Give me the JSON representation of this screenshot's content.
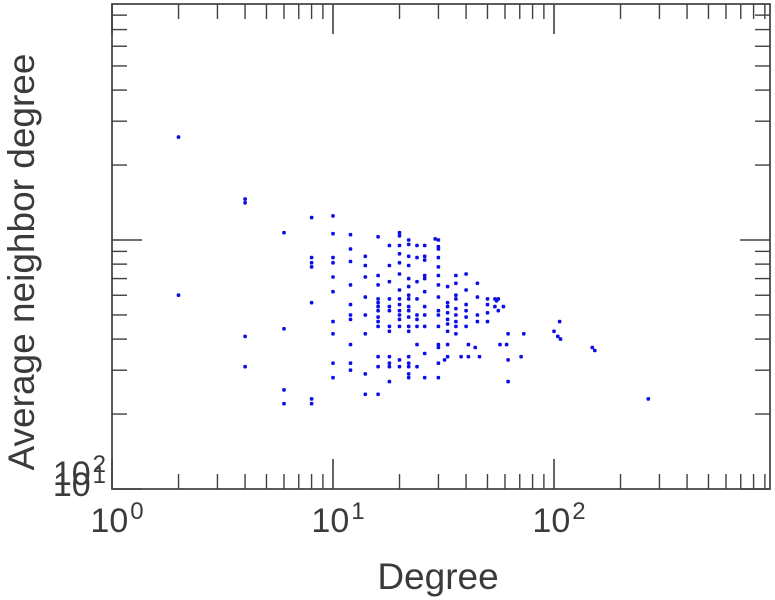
{
  "chart_data": {
    "type": "scatter",
    "title": "",
    "xlabel": "Degree",
    "ylabel": "Average neighbor degree",
    "xscale": "log",
    "yscale": "log",
    "xlim": [
      1,
      950
    ],
    "ylim": [
      10,
      900
    ],
    "grid": false,
    "legend": "none",
    "x_tick_labels": [
      {
        "value": 1,
        "base": "10",
        "exp": "0"
      },
      {
        "value": 10,
        "base": "10",
        "exp": "1"
      },
      {
        "value": 100,
        "base": "10",
        "exp": "2"
      }
    ],
    "y_tick_labels": [
      {
        "value": 10,
        "base": "10",
        "exp": "1"
      },
      {
        "value": 100,
        "base": "10",
        "exp": "2"
      }
    ],
    "colors": {
      "marker": "#0d0de8",
      "axis": "#404040",
      "text": "#3a3a3a",
      "background": "#ffffff"
    },
    "points": [
      [
        2,
        259
      ],
      [
        2,
        60
      ],
      [
        4,
        146
      ],
      [
        4,
        141
      ],
      [
        4,
        41
      ],
      [
        4,
        31
      ],
      [
        6,
        107
      ],
      [
        6,
        44
      ],
      [
        6,
        25
      ],
      [
        6,
        22
      ],
      [
        8,
        123
      ],
      [
        8,
        85
      ],
      [
        8,
        81
      ],
      [
        8,
        78
      ],
      [
        8,
        56
      ],
      [
        8,
        23
      ],
      [
        8,
        22
      ],
      [
        10,
        125
      ],
      [
        10,
        106
      ],
      [
        10,
        85
      ],
      [
        10,
        81
      ],
      [
        10,
        71
      ],
      [
        10,
        62
      ],
      [
        10,
        47
      ],
      [
        10,
        42
      ],
      [
        10,
        32
      ],
      [
        10,
        28
      ],
      [
        12,
        105
      ],
      [
        12,
        92
      ],
      [
        12,
        82
      ],
      [
        12,
        66
      ],
      [
        12,
        55
      ],
      [
        12,
        50
      ],
      [
        12,
        48
      ],
      [
        12,
        38
      ],
      [
        12,
        32
      ],
      [
        12,
        30
      ],
      [
        14,
        86
      ],
      [
        14,
        79
      ],
      [
        14,
        71
      ],
      [
        14,
        59
      ],
      [
        14,
        50
      ],
      [
        14,
        42
      ],
      [
        14,
        29
      ],
      [
        14,
        24
      ],
      [
        16,
        103
      ],
      [
        16,
        72
      ],
      [
        16,
        66
      ],
      [
        16,
        58
      ],
      [
        16,
        56
      ],
      [
        16,
        54
      ],
      [
        16,
        52
      ],
      [
        16,
        49
      ],
      [
        16,
        47
      ],
      [
        16,
        45
      ],
      [
        16,
        34
      ],
      [
        16,
        31
      ],
      [
        16,
        24
      ],
      [
        18,
        95
      ],
      [
        18,
        79
      ],
      [
        18,
        68
      ],
      [
        18,
        58
      ],
      [
        18,
        54
      ],
      [
        18,
        52
      ],
      [
        18,
        45
      ],
      [
        18,
        43
      ],
      [
        18,
        34
      ],
      [
        18,
        32
      ],
      [
        18,
        31
      ],
      [
        18,
        27
      ],
      [
        20,
        107
      ],
      [
        20,
        104
      ],
      [
        20,
        95
      ],
      [
        20,
        88
      ],
      [
        20,
        81
      ],
      [
        20,
        73
      ],
      [
        20,
        63
      ],
      [
        20,
        58
      ],
      [
        20,
        55
      ],
      [
        20,
        52
      ],
      [
        20,
        50
      ],
      [
        20,
        48
      ],
      [
        20,
        45
      ],
      [
        20,
        33
      ],
      [
        20,
        31
      ],
      [
        22,
        100
      ],
      [
        22,
        96
      ],
      [
        22,
        86
      ],
      [
        22,
        79
      ],
      [
        22,
        70
      ],
      [
        22,
        65
      ],
      [
        22,
        60
      ],
      [
        22,
        58
      ],
      [
        22,
        54
      ],
      [
        22,
        52
      ],
      [
        22,
        49
      ],
      [
        22,
        45
      ],
      [
        22,
        43
      ],
      [
        22,
        34
      ],
      [
        22,
        32
      ],
      [
        22,
        31
      ],
      [
        22,
        29
      ],
      [
        22,
        28
      ],
      [
        24,
        95
      ],
      [
        24,
        85
      ],
      [
        24,
        68
      ],
      [
        24,
        58
      ],
      [
        24,
        50
      ],
      [
        24,
        48
      ],
      [
        24,
        45
      ],
      [
        24,
        38
      ],
      [
        24,
        31
      ],
      [
        26,
        95
      ],
      [
        26,
        86
      ],
      [
        26,
        83
      ],
      [
        26,
        72
      ],
      [
        26,
        70
      ],
      [
        26,
        62
      ],
      [
        26,
        54
      ],
      [
        26,
        50
      ],
      [
        26,
        45
      ],
      [
        26,
        35
      ],
      [
        26,
        28
      ],
      [
        29,
        101
      ],
      [
        30,
        100
      ],
      [
        30,
        94
      ],
      [
        30,
        92
      ],
      [
        30,
        85
      ],
      [
        30,
        78
      ],
      [
        30,
        72
      ],
      [
        30,
        66
      ],
      [
        30,
        59
      ],
      [
        30,
        52
      ],
      [
        30,
        50
      ],
      [
        30,
        45
      ],
      [
        30,
        38
      ],
      [
        30,
        37
      ],
      [
        30,
        32
      ],
      [
        30,
        28
      ],
      [
        32,
        33
      ],
      [
        33,
        65
      ],
      [
        33,
        56
      ],
      [
        33,
        54
      ],
      [
        33,
        51
      ],
      [
        33,
        48
      ],
      [
        33,
        46
      ],
      [
        33,
        43
      ],
      [
        33,
        38
      ],
      [
        33,
        34
      ],
      [
        36,
        72
      ],
      [
        36,
        67
      ],
      [
        36,
        60
      ],
      [
        36,
        58
      ],
      [
        36,
        53
      ],
      [
        36,
        50
      ],
      [
        36,
        47
      ],
      [
        36,
        45
      ],
      [
        36,
        42
      ],
      [
        38,
        34
      ],
      [
        40,
        73
      ],
      [
        40,
        63
      ],
      [
        40,
        55
      ],
      [
        40,
        52
      ],
      [
        40,
        49
      ],
      [
        40,
        45
      ],
      [
        41,
        38
      ],
      [
        41,
        34
      ],
      [
        44,
        37
      ],
      [
        45,
        67
      ],
      [
        45,
        59
      ],
      [
        45,
        50
      ],
      [
        45,
        47
      ],
      [
        46,
        34
      ],
      [
        50,
        58
      ],
      [
        50,
        55
      ],
      [
        50,
        51
      ],
      [
        50,
        47
      ],
      [
        54,
        58
      ],
      [
        55,
        57
      ],
      [
        56,
        58
      ],
      [
        54,
        54
      ],
      [
        56,
        52
      ],
      [
        57,
        38
      ],
      [
        59,
        54
      ],
      [
        61,
        38
      ],
      [
        62,
        42
      ],
      [
        62,
        33
      ],
      [
        62,
        27
      ],
      [
        71,
        34
      ],
      [
        73,
        42
      ],
      [
        100,
        43
      ],
      [
        104,
        41
      ],
      [
        107,
        40
      ],
      [
        106,
        47
      ],
      [
        149,
        37
      ],
      [
        153,
        36
      ],
      [
        267,
        23
      ]
    ]
  }
}
